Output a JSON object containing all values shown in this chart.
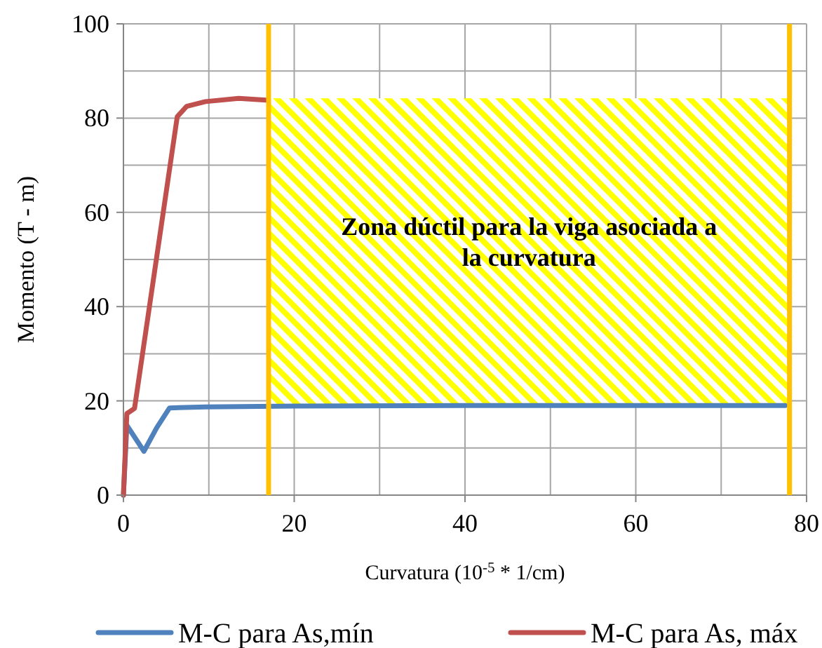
{
  "chart_data": {
    "type": "line",
    "xlabel": "Curvatura (10$^{-5}$ * 1/cm)",
    "ylabel": "Momento (T - m)",
    "xlim": [
      0,
      80
    ],
    "ylim": [
      0,
      100
    ],
    "xticks": [
      0,
      {
        "value": 10,
        "label": null
      },
      20,
      {
        "value": 30,
        "label": null
      },
      40,
      {
        "value": 50,
        "label": null
      },
      60,
      {
        "value": 70,
        "label": null
      },
      80
    ],
    "yticks": [
      0,
      {
        "value": 10,
        "label": null
      },
      20,
      {
        "value": 30,
        "label": null
      },
      40,
      {
        "value": 50,
        "label": null
      },
      60,
      {
        "value": 70,
        "label": null
      },
      80,
      {
        "value": 90,
        "label": null
      },
      100
    ],
    "grid": true,
    "legend": "bottom",
    "line_style": "solid",
    "marker": "none",
    "series": [
      {
        "name": "M-C para As,mín",
        "color": "#4f81bd",
        "x": [
          0,
          0.4,
          2.4,
          3.9,
          5.4,
          9.6,
          20,
          40,
          60,
          77.5
        ],
        "values": [
          0,
          14.8,
          9.3,
          14.3,
          18.5,
          18.7,
          18.9,
          19,
          19,
          19
        ]
      },
      {
        "name": "M-C para As, máx",
        "color": "#c0504d",
        "x": [
          0,
          0.4,
          1.3,
          6.3,
          7.4,
          9.6,
          13.5,
          16.7
        ],
        "values": [
          0,
          17.3,
          18.4,
          80.3,
          82.5,
          83.5,
          84.2,
          83.8
        ]
      }
    ],
    "ref_lines": [
      {
        "axis": "x",
        "value": 17,
        "color": "#ffc000"
      },
      {
        "axis": "x",
        "value": 78,
        "color": "#ffc000"
      }
    ],
    "bands": [
      {
        "axis": "x",
        "from": 17,
        "to": 78,
        "label": "Zona dúctil para la viga asociada a la curvatura",
        "color": "#ffff00"
      }
    ]
  }
}
